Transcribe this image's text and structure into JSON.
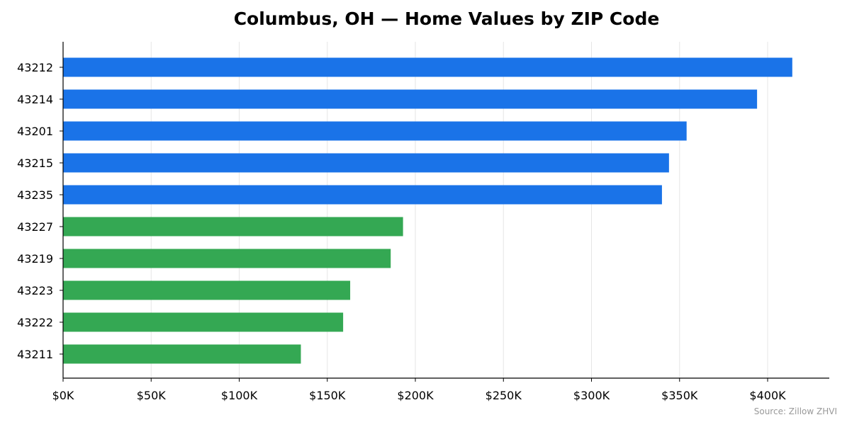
{
  "chart_data": {
    "type": "bar",
    "orientation": "horizontal",
    "title": "Columbus, OH — Home Values by ZIP Code",
    "xlabel": "",
    "ylabel": "",
    "categories": [
      "43212",
      "43214",
      "43201",
      "43215",
      "43235",
      "43227",
      "43219",
      "43223",
      "43222",
      "43211"
    ],
    "values": [
      414,
      394,
      354,
      344,
      340,
      193,
      186,
      163,
      159,
      135
    ],
    "bar_colors": [
      "#1a73e8",
      "#1a73e8",
      "#1a73e8",
      "#1a73e8",
      "#1a73e8",
      "#34a853",
      "#34a853",
      "#34a853",
      "#34a853",
      "#34a853"
    ],
    "xlim": [
      0,
      435
    ],
    "x_ticks": [
      0,
      50,
      100,
      150,
      200,
      250,
      300,
      350,
      400
    ],
    "x_tick_labels": [
      "$0K",
      "$50K",
      "$100K",
      "$150K",
      "$200K",
      "$250K",
      "$300K",
      "$350K",
      "$400K"
    ],
    "grid": "x",
    "source": "Source: Zillow ZHVI"
  }
}
